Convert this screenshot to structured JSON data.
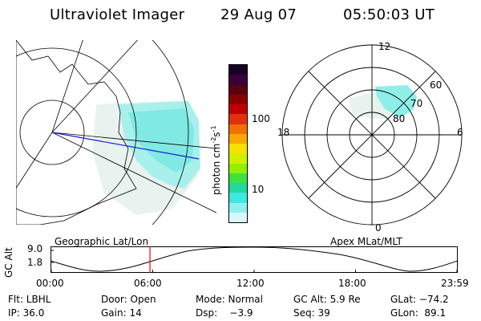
{
  "header": {
    "instrument": "Ultraviolet Imager",
    "date": "29 Aug 07",
    "time": "05:50:03 UT"
  },
  "colorbar": {
    "unit_label": "photon cm",
    "unit_exp1": "-2",
    "unit_s": "s",
    "unit_exp2": "-1",
    "ticks": [
      "100",
      "10"
    ],
    "colors": [
      "#1a0024",
      "#3a003a",
      "#5a0010",
      "#8a0000",
      "#c00000",
      "#e03010",
      "#f07000",
      "#f8a800",
      "#f8e000",
      "#d0f000",
      "#90f000",
      "#40e040",
      "#20d8a0",
      "#40e8e0",
      "#90f0f0",
      "#d8f8f8"
    ]
  },
  "geo_panel": {
    "caption": "Geographic Lat/Lon"
  },
  "polar_panel": {
    "caption": "Apex MLat/MLT",
    "mlt_labels": {
      "top": "12",
      "left": "18",
      "right": "6",
      "bottom": "0"
    },
    "lat_labels": [
      "60",
      "70",
      "80"
    ]
  },
  "timeline": {
    "ylabel": "GC Alt",
    "yticks": [
      "9.0",
      "1.8"
    ],
    "xticks": [
      "00:00",
      "06:00",
      "12:00",
      "18:00",
      "23:59"
    ],
    "marker_time": "05:50",
    "marker_color": "#ff0000"
  },
  "info": {
    "row1": {
      "filter": "Flt: LBHL",
      "door": "Door: Open",
      "mode": "Mode: Normal",
      "gcalt": "GC Alt: 5.9 Re",
      "glat": "GLat: −74.2"
    },
    "row2": {
      "ip": "IP: 36.0",
      "gain": "Gain: 14",
      "dsp": "Dsp:    −3.9",
      "seq": "Seq: 39",
      "glon": "GLon:  89.1"
    }
  }
}
